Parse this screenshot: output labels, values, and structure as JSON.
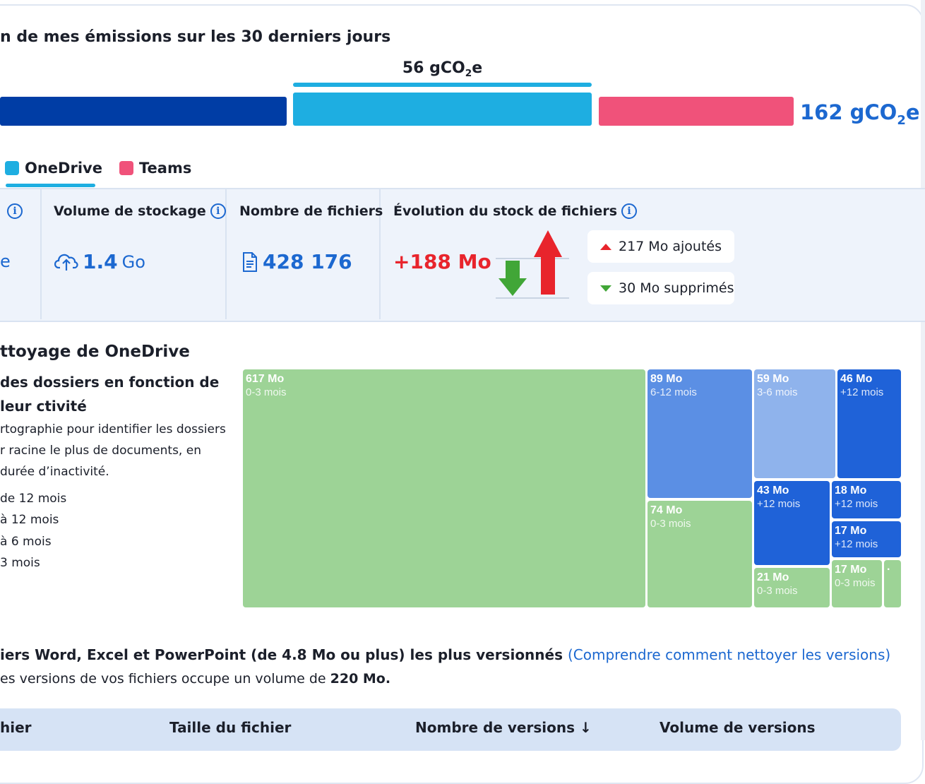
{
  "emissions": {
    "title": "n de mes émissions sur les 30 derniers jours",
    "mid_value": "56 gCO",
    "mid_sub": "2",
    "mid_suffix": "e",
    "total_value": "162 gCO",
    "total_sub": "2",
    "total_suffix": "e",
    "colors": {
      "outlook": "#003da5",
      "onedrive": "#1eaee1",
      "teams": "#f0527a"
    }
  },
  "legend": {
    "onedrive": "OneDrive",
    "teams": "Teams"
  },
  "stats": {
    "first_value_fragment": "e",
    "storage": {
      "title": "Volume de stockage",
      "value": "1.4",
      "unit": "Go",
      "icon": "cloud-upload-icon"
    },
    "files": {
      "title": "Nombre de fichiers",
      "value": "428 176",
      "icon": "document-icon"
    },
    "evolution": {
      "title": "Évolution du stock de fichiers",
      "value": "+188 Mo",
      "added": "217 Mo ajoutés",
      "removed": "30 Mo supprimés",
      "colors": {
        "up": "#e8242c",
        "down": "#41a637"
      }
    }
  },
  "cleanup": {
    "title": "ttoyage de OneDrive",
    "subtitle": "des dossiers en fonction de leur ctivité",
    "description": "rtographie pour identifier les dossiers r racine le plus de documents, en durée d’inactivité.",
    "legend": [
      "de 12 mois",
      "à 12 mois",
      "à 6 mois",
      " 3 mois"
    ]
  },
  "treemap": [
    {
      "value": "617 Mo",
      "period": "0-3 mois",
      "color": "#9dd396"
    },
    {
      "value": "89 Mo",
      "period": "6-12 mois",
      "color": "#5b8fe4"
    },
    {
      "value": "74 Mo",
      "period": "0-3 mois",
      "color": "#9dd396"
    },
    {
      "value": "59 Mo",
      "period": "3-6 mois",
      "color": "#8fb3ec"
    },
    {
      "value": "46 Mo",
      "period": "+12 mois",
      "color": "#1f62d8"
    },
    {
      "value": "43 Mo",
      "period": "+12 mois",
      "color": "#1f62d8"
    },
    {
      "value": "18 Mo",
      "period": "+12 mois",
      "color": "#1f62d8"
    },
    {
      "value": "17 Mo",
      "period": "+12 mois",
      "color": "#1f62d8"
    },
    {
      "value": "21 Mo",
      "period": "0-3 mois",
      "color": "#9dd396"
    },
    {
      "value": "17 Mo",
      "period": "0-3 mois",
      "color": "#9dd396"
    },
    {
      "value": "·",
      "period": "",
      "color": "#9dd396"
    }
  ],
  "versions": {
    "title": "iers Word, Excel et PowerPoint (de 4.8 Mo ou plus) les plus versionnés",
    "link": "(Comprendre comment nettoyer les versions)",
    "subtitle_prefix": "es versions de vos fichiers occupe un volume de ",
    "subtitle_value": "220 Mo.",
    "columns": [
      "hier",
      "Taille du fichier",
      "Nombre de versions ↓",
      "Volume de versions"
    ]
  }
}
